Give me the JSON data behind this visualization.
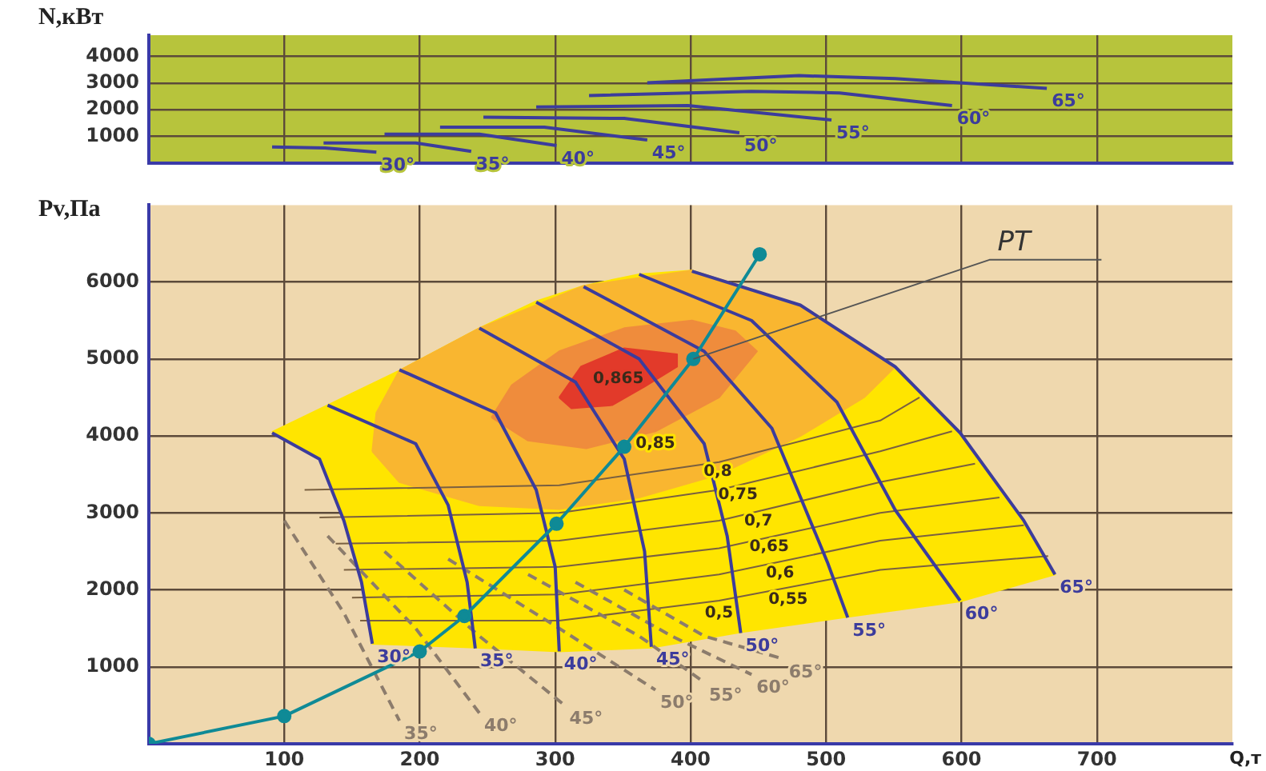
{
  "chart_data": [
    {
      "type": "line",
      "ylabel": "N,кВт",
      "xlim": [
        0,
        800
      ],
      "ylim": [
        0,
        4800
      ],
      "xticks": [
        100,
        200,
        300,
        400,
        500,
        600,
        700
      ],
      "yticks": [
        1000,
        2000,
        3000,
        4000
      ],
      "tick_labels": "y",
      "grid": true,
      "marker": "none",
      "series": [
        {
          "name": "30°",
          "color": "#3c3c9c",
          "x": [
            91,
            130,
            168
          ],
          "values": [
            600,
            560,
            400
          ]
        },
        {
          "name": "35°",
          "color": "#3c3c9c",
          "x": [
            129,
            197,
            238
          ],
          "values": [
            750,
            750,
            430
          ]
        },
        {
          "name": "40°",
          "color": "#3c3c9c",
          "x": [
            174,
            244,
            301
          ],
          "values": [
            1080,
            1080,
            650
          ]
        },
        {
          "name": "45°",
          "color": "#3c3c9c",
          "x": [
            215,
            292,
            368
          ],
          "values": [
            1340,
            1340,
            860
          ]
        },
        {
          "name": "50°",
          "color": "#3c3c9c",
          "x": [
            247,
            351,
            436
          ],
          "values": [
            1720,
            1670,
            1130
          ]
        },
        {
          "name": "55°",
          "color": "#3c3c9c",
          "x": [
            286,
            398,
            504
          ],
          "values": [
            2100,
            2150,
            1610
          ]
        },
        {
          "name": "60°",
          "color": "#3c3c9c",
          "x": [
            325,
            445,
            510,
            593
          ],
          "values": [
            2530,
            2690,
            2630,
            2150
          ]
        },
        {
          "name": "65°",
          "color": "#3c3c9c",
          "x": [
            368,
            480,
            551,
            663
          ],
          "values": [
            3010,
            3280,
            3170,
            2800
          ]
        }
      ]
    },
    {
      "type": "line",
      "ylabel": "Pv,Па",
      "xlabel": "Q,т",
      "xlim": [
        0,
        800
      ],
      "ylim": [
        0,
        7000
      ],
      "xticks": [
        100,
        200,
        300,
        400,
        500,
        600,
        700
      ],
      "yticks": [
        1000,
        2000,
        3000,
        4000,
        5000,
        6000
      ],
      "grid": true,
      "marker": "none",
      "annotations": [
        {
          "text": "0,85",
          "x": 374,
          "y": 4060
        },
        {
          "text": "0,8",
          "x": 420,
          "y": 3700
        },
        {
          "text": "0,75",
          "x": 435,
          "y": 3400
        },
        {
          "text": "0,7",
          "x": 450,
          "y": 3060
        },
        {
          "text": "0,65",
          "x": 458,
          "y": 2720
        },
        {
          "text": "0,6",
          "x": 466,
          "y": 2380
        },
        {
          "text": "0,55",
          "x": 472,
          "y": 2040
        },
        {
          "text": "0,5",
          "x": 421,
          "y": 1860
        },
        {
          "text": "PT",
          "x": 402,
          "y": 5000
        }
      ],
      "series": [
        {
          "type": "area",
          "color": "#ffe500",
          "x": [
            91,
            132,
            185,
            244,
            286,
            321,
            362,
            401,
            481,
            551,
            599,
            646,
            669,
            599,
            516,
            437,
            371,
            303,
            241,
            165,
            157,
            144,
            126,
            91
          ],
          "values": [
            4050,
            4400,
            4850,
            5400,
            5750,
            5950,
            6100,
            6150,
            5700,
            4900,
            4050,
            2900,
            2200,
            1850,
            1650,
            1450,
            1250,
            1200,
            1250,
            1300,
            2100,
            2900,
            3700,
            4050
          ]
        },
        {
          "type": "area",
          "color": "#f9b630",
          "x": [
            165,
            185,
            244,
            303,
            362,
            421,
            481,
            528,
            551,
            481,
            401,
            321,
            244,
            185,
            168,
            165
          ],
          "values": [
            3800,
            3400,
            3100,
            3050,
            3200,
            3500,
            4000,
            4500,
            4900,
            5700,
            6150,
            5950,
            5400,
            4850,
            4300,
            3800
          ]
        },
        {
          "type": "area",
          "color": "#ef8c3c",
          "x": [
            253,
            280,
            323,
            374,
            421,
            449,
            433,
            401,
            351,
            303,
            268,
            253
          ],
          "values": [
            4240,
            3940,
            3840,
            4060,
            4500,
            5100,
            5360,
            5500,
            5400,
            5100,
            4660,
            4240
          ]
        },
        {
          "type": "area",
          "name": "0,865",
          "color": "#e23a2a",
          "x": [
            303,
            319,
            351,
            390,
            390,
            366,
            342,
            312,
            303
          ],
          "values": [
            4500,
            4900,
            5140,
            5060,
            4900,
            4640,
            4400,
            4360,
            4500
          ]
        },
        {
          "color": "#7a6040",
          "x": [
            156,
            303,
            421,
            540,
            664
          ],
          "values": [
            1600,
            1600,
            1860,
            2260,
            2440
          ]
        },
        {
          "color": "#7a6040",
          "x": [
            150,
            303,
            421,
            540,
            646
          ],
          "values": [
            1900,
            1940,
            2200,
            2640,
            2840
          ]
        },
        {
          "color": "#7a6040",
          "x": [
            144,
            303,
            421,
            540,
            628
          ],
          "values": [
            2260,
            2300,
            2540,
            3000,
            3200
          ]
        },
        {
          "color": "#7a6040",
          "x": [
            138,
            303,
            421,
            540,
            610
          ],
          "values": [
            2600,
            2640,
            2900,
            3400,
            3640
          ]
        },
        {
          "color": "#7a6040",
          "x": [
            126,
            303,
            421,
            540,
            593
          ],
          "values": [
            2940,
            3000,
            3300,
            3800,
            4060
          ]
        },
        {
          "color": "#7a6040",
          "x": [
            115,
            303,
            421,
            540,
            569
          ],
          "values": [
            3300,
            3360,
            3660,
            4200,
            4500
          ]
        },
        {
          "name": "35°",
          "color": "#8c7c6c",
          "line_style": "dashed",
          "x": [
            100,
            144,
            185
          ],
          "values": [
            2900,
            1700,
            300
          ]
        },
        {
          "name": "40°",
          "color": "#8c7c6c",
          "line_style": "dashed",
          "x": [
            132,
            197,
            244
          ],
          "values": [
            2700,
            1500,
            400
          ]
        },
        {
          "name": "45°",
          "color": "#8c7c6c",
          "line_style": "dashed",
          "x": [
            174,
            244,
            307
          ],
          "values": [
            2500,
            1400,
            500
          ]
        },
        {
          "name": "50°",
          "color": "#8c7c6c",
          "line_style": "dashed",
          "x": [
            221,
            303,
            374
          ],
          "values": [
            2400,
            1500,
            700
          ]
        },
        {
          "name": "55°",
          "color": "#8c7c6c",
          "line_style": "dashed",
          "x": [
            280,
            362,
            410
          ],
          "values": [
            2200,
            1400,
            800
          ]
        },
        {
          "name": "60°",
          "color": "#8c7c6c",
          "line_style": "dashed",
          "x": [
            315,
            386,
            445
          ],
          "values": [
            2100,
            1400,
            900
          ]
        },
        {
          "name": "65°",
          "color": "#8c7c6c",
          "line_style": "dashed",
          "x": [
            351,
            410,
            469
          ],
          "values": [
            2000,
            1400,
            1100
          ]
        },
        {
          "name": "30°",
          "color": "#3c3c9c",
          "x": [
            91,
            126,
            144,
            157,
            165
          ],
          "values": [
            4040,
            3700,
            2900,
            2100,
            1300
          ]
        },
        {
          "name": "35°",
          "color": "#3c3c9c",
          "x": [
            132,
            197,
            221,
            235,
            241
          ],
          "values": [
            4400,
            3900,
            3100,
            2100,
            1240
          ]
        },
        {
          "name": "40°",
          "color": "#3c3c9c",
          "x": [
            185,
            256,
            286,
            300,
            303
          ],
          "values": [
            4860,
            4300,
            3300,
            2300,
            1200
          ]
        },
        {
          "name": "45°",
          "color": "#3c3c9c",
          "x": [
            244,
            315,
            351,
            366,
            371
          ],
          "values": [
            5400,
            4700,
            3700,
            2500,
            1260
          ]
        },
        {
          "name": "50°",
          "color": "#3c3c9c",
          "x": [
            286,
            362,
            410,
            427,
            437
          ],
          "values": [
            5740,
            5000,
            3900,
            2700,
            1440
          ]
        },
        {
          "name": "55°",
          "color": "#3c3c9c",
          "x": [
            321,
            410,
            460,
            501,
            516
          ],
          "values": [
            5940,
            5100,
            4100,
            2360,
            1640
          ]
        },
        {
          "name": "60°",
          "color": "#3c3c9c",
          "x": [
            362,
            445,
            508,
            551,
            599
          ],
          "values": [
            6100,
            5500,
            4440,
            3040,
            1860
          ]
        },
        {
          "name": "65°",
          "color": "#3c3c9c",
          "x": [
            401,
            481,
            551,
            599,
            646,
            669
          ],
          "values": [
            6140,
            5700,
            4900,
            4040,
            2900,
            2200
          ]
        },
        {
          "color": "#0f8a96",
          "marker": "circle",
          "x": [
            0,
            100,
            200,
            233,
            301,
            351,
            402,
            451
          ],
          "values": [
            0,
            360,
            1200,
            1660,
            2860,
            3860,
            5000,
            6360
          ]
        }
      ]
    }
  ]
}
